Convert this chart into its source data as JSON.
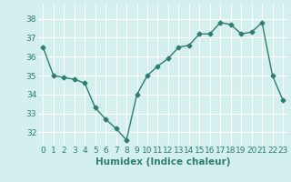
{
  "x": [
    0,
    1,
    2,
    3,
    4,
    5,
    6,
    7,
    8,
    9,
    10,
    11,
    12,
    13,
    14,
    15,
    16,
    17,
    18,
    19,
    20,
    21,
    22,
    23
  ],
  "y": [
    36.5,
    35.0,
    34.9,
    34.8,
    34.6,
    33.3,
    32.7,
    32.2,
    31.6,
    34.0,
    35.0,
    35.5,
    35.9,
    36.5,
    36.6,
    37.2,
    37.2,
    37.8,
    37.7,
    37.2,
    37.3,
    37.8,
    35.0,
    33.7
  ],
  "line_color": "#2e7d6e",
  "marker": "D",
  "marker_size": 2.5,
  "linewidth": 1.0,
  "xlabel": "Humidex (Indice chaleur)",
  "xlabel_fontsize": 7.5,
  "background_color": "#d4f0ee",
  "grid_color": "#ffffff",
  "ylim": [
    31.3,
    38.8
  ],
  "xlim": [
    -0.5,
    23.5
  ],
  "yticks": [
    32,
    33,
    34,
    35,
    36,
    37,
    38
  ],
  "xticks": [
    0,
    1,
    2,
    3,
    4,
    5,
    6,
    7,
    8,
    9,
    10,
    11,
    12,
    13,
    14,
    15,
    16,
    17,
    18,
    19,
    20,
    21,
    22,
    23
  ],
  "tick_fontsize": 6.5
}
